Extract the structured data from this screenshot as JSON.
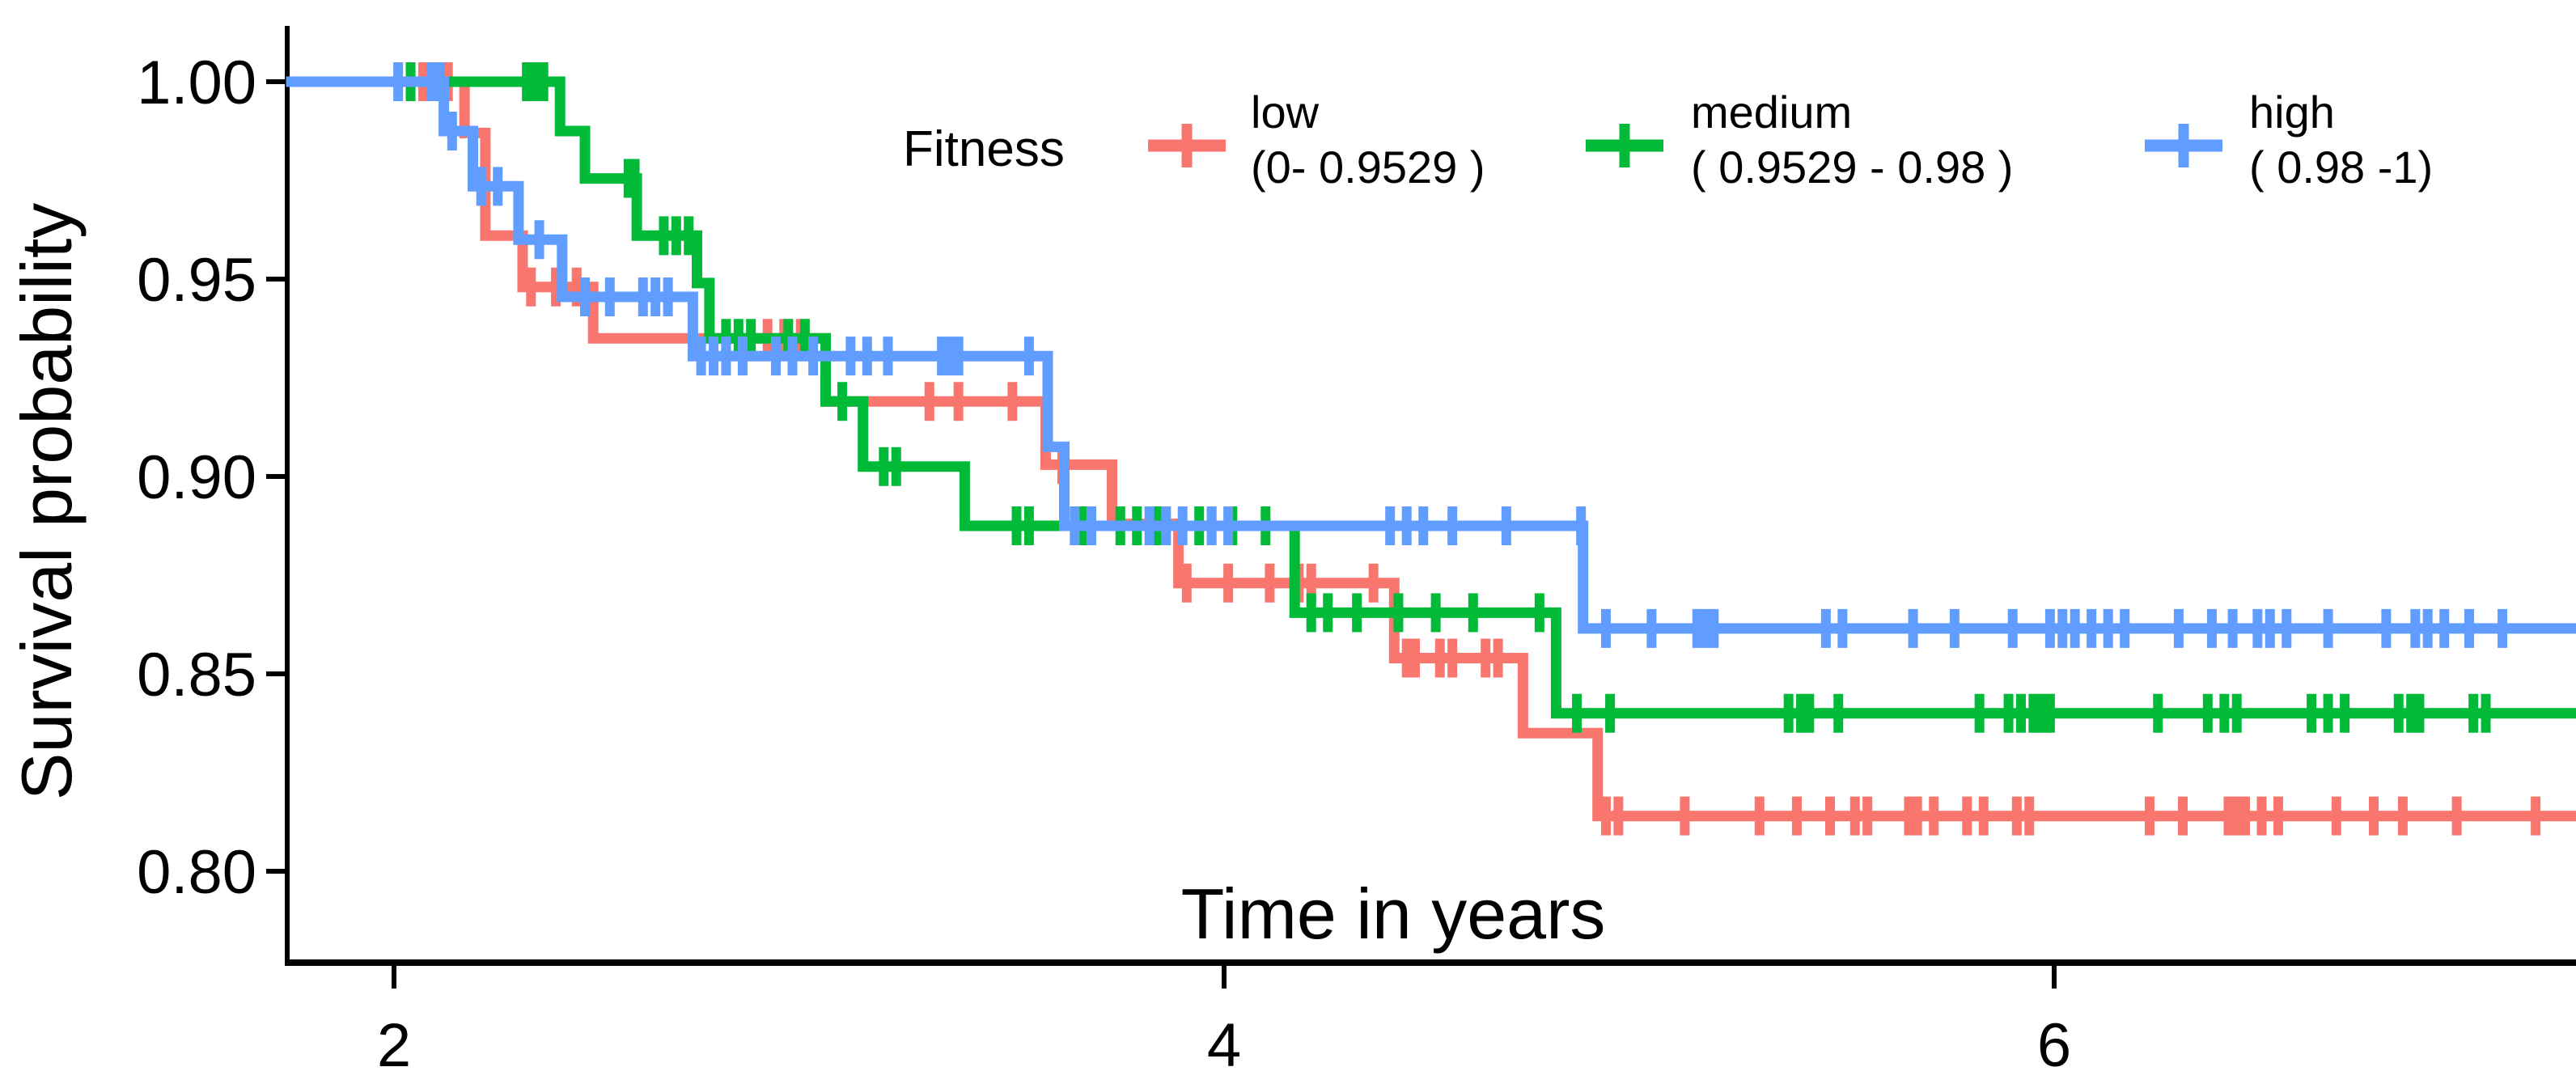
{
  "chart_data": {
    "type": "line",
    "subtype": "kaplan-meier-step",
    "title": "",
    "xlabel": "Time in years",
    "ylabel": "Survival probability",
    "grid": false,
    "legend_position": "top-inside",
    "x_ticks": [
      {
        "v": 2,
        "label": "2"
      },
      {
        "v": 4,
        "label": "4"
      },
      {
        "v": 6,
        "label": "6"
      }
    ],
    "y_ticks": [
      {
        "v": 1.0,
        "label": "1.00"
      },
      {
        "v": 0.95,
        "label": "0.95"
      },
      {
        "v": 0.9,
        "label": "0.90"
      },
      {
        "v": 0.85,
        "label": "0.85"
      },
      {
        "v": 0.8,
        "label": "0.80"
      }
    ],
    "xlim": [
      1.74,
      7.26
    ],
    "ylim": [
      0.777,
      1.014
    ],
    "legend": {
      "title": "Fitness",
      "entries": [
        {
          "name": "low",
          "range_label": "(0- 0.9529 )",
          "color": "#F8766D"
        },
        {
          "name": "medium",
          "range_label": "( 0.9529 - 0.98 )",
          "color": "#00BA38"
        },
        {
          "name": "high",
          "range_label": "( 0.98 -1)",
          "color": "#619CFF"
        }
      ]
    },
    "series": [
      {
        "name": "low",
        "color": "#F8766D",
        "start": {
          "t": 1.74,
          "s": 1.0
        },
        "end_t": 7.26,
        "steps": [
          [
            2.17,
            0.987
          ],
          [
            2.22,
            0.961
          ],
          [
            2.31,
            0.948
          ],
          [
            2.48,
            0.935
          ],
          [
            3.04,
            0.919
          ],
          [
            3.57,
            0.903
          ],
          [
            3.73,
            0.888
          ],
          [
            3.89,
            0.873
          ],
          [
            4.41,
            0.854
          ],
          [
            4.72,
            0.835
          ],
          [
            4.9,
            0.814
          ]
        ],
        "censors": [
          2.07,
          2.13,
          2.33,
          2.39,
          2.44,
          2.9,
          2.94,
          2.98,
          3.29,
          3.36,
          3.49,
          3.61,
          3.91,
          4.01,
          4.11,
          4.18,
          4.21,
          4.36,
          4.44,
          4.46,
          4.52,
          4.55,
          4.63,
          4.66,
          4.92,
          4.95,
          5.11,
          5.29,
          5.38,
          5.46,
          5.52,
          5.55,
          5.65,
          5.67,
          5.71,
          5.79,
          5.83,
          5.91,
          5.94,
          6.23,
          6.31,
          6.42,
          6.44,
          6.46,
          6.5,
          6.54,
          6.68,
          6.77,
          6.84,
          6.97,
          7.16
        ]
      },
      {
        "name": "medium",
        "color": "#00BA38",
        "start": {
          "t": 1.74,
          "s": 1.0
        },
        "end_t": 7.26,
        "steps": [
          [
            2.4,
            0.9875
          ],
          [
            2.46,
            0.9755
          ],
          [
            2.585,
            0.961
          ],
          [
            2.73,
            0.949
          ],
          [
            2.76,
            0.935
          ],
          [
            3.04,
            0.919
          ],
          [
            3.13,
            0.9025
          ],
          [
            3.375,
            0.8875
          ],
          [
            4.17,
            0.8655
          ],
          [
            4.8,
            0.84
          ]
        ],
        "censors": [
          2.04,
          2.32,
          2.34,
          2.36,
          2.565,
          2.58,
          2.65,
          2.68,
          2.71,
          2.8,
          2.83,
          2.86,
          2.95,
          2.99,
          3.08,
          3.18,
          3.21,
          3.5,
          3.53,
          3.66,
          3.68,
          3.75,
          3.79,
          3.84,
          3.86,
          3.94,
          3.97,
          4.02,
          4.1,
          4.21,
          4.25,
          4.32,
          4.42,
          4.51,
          4.6,
          4.76,
          4.85,
          4.93,
          5.36,
          5.39,
          5.41,
          5.48,
          5.82,
          5.89,
          5.92,
          5.95,
          5.97,
          5.99,
          6.25,
          6.37,
          6.41,
          6.44,
          6.62,
          6.66,
          6.7,
          6.83,
          6.86,
          6.88,
          7.01,
          7.04
        ]
      },
      {
        "name": "high",
        "color": "#619CFF",
        "start": {
          "t": 1.74,
          "s": 1.0
        },
        "end_t": 7.26,
        "steps": [
          [
            2.12,
            0.9875
          ],
          [
            2.19,
            0.9735
          ],
          [
            2.3,
            0.96
          ],
          [
            2.405,
            0.9455
          ],
          [
            2.72,
            0.9305
          ],
          [
            3.575,
            0.9075
          ],
          [
            3.615,
            0.8875
          ],
          [
            4.865,
            0.8615
          ]
        ],
        "censors": [
          2.01,
          2.09,
          2.11,
          2.14,
          2.21,
          2.25,
          2.35,
          2.46,
          2.52,
          2.6,
          2.63,
          2.66,
          2.74,
          2.77,
          2.8,
          2.84,
          2.92,
          2.96,
          3.01,
          3.1,
          3.14,
          3.19,
          3.32,
          3.34,
          3.36,
          3.53,
          3.64,
          3.68,
          3.82,
          3.86,
          3.9,
          3.97,
          4.01,
          4.4,
          4.44,
          4.48,
          4.55,
          4.68,
          4.86,
          4.92,
          5.03,
          5.14,
          5.16,
          5.18,
          5.45,
          5.49,
          5.66,
          5.76,
          5.9,
          5.99,
          6.02,
          6.05,
          6.09,
          6.13,
          6.17,
          6.3,
          6.38,
          6.43,
          6.49,
          6.52,
          6.56,
          6.66,
          6.8,
          6.87,
          6.9,
          6.94,
          7.0,
          7.08
        ]
      }
    ]
  }
}
